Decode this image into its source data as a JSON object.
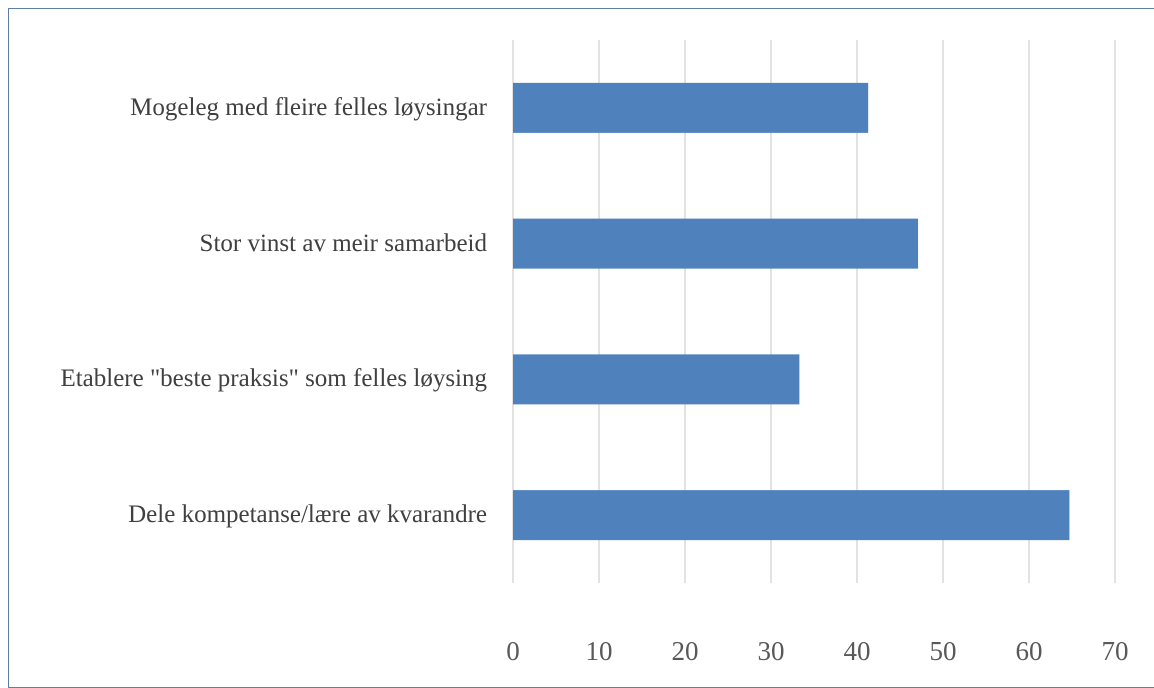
{
  "chart_data": {
    "type": "barh",
    "categories": [
      "Mogeleg med fleire felles løysingar",
      "Stor vinst av meir samarbeid",
      "Etablere \"beste praksis\" som felles løysing",
      "Dele kompetanse/lære av kvarandre"
    ],
    "values": [
      41.3,
      47.1,
      33.3,
      64.7
    ],
    "color": "#4f81bd",
    "xlim": [
      0,
      70
    ],
    "xticks": [
      0,
      10,
      20,
      30,
      40,
      50,
      60,
      70
    ],
    "grid": true
  }
}
